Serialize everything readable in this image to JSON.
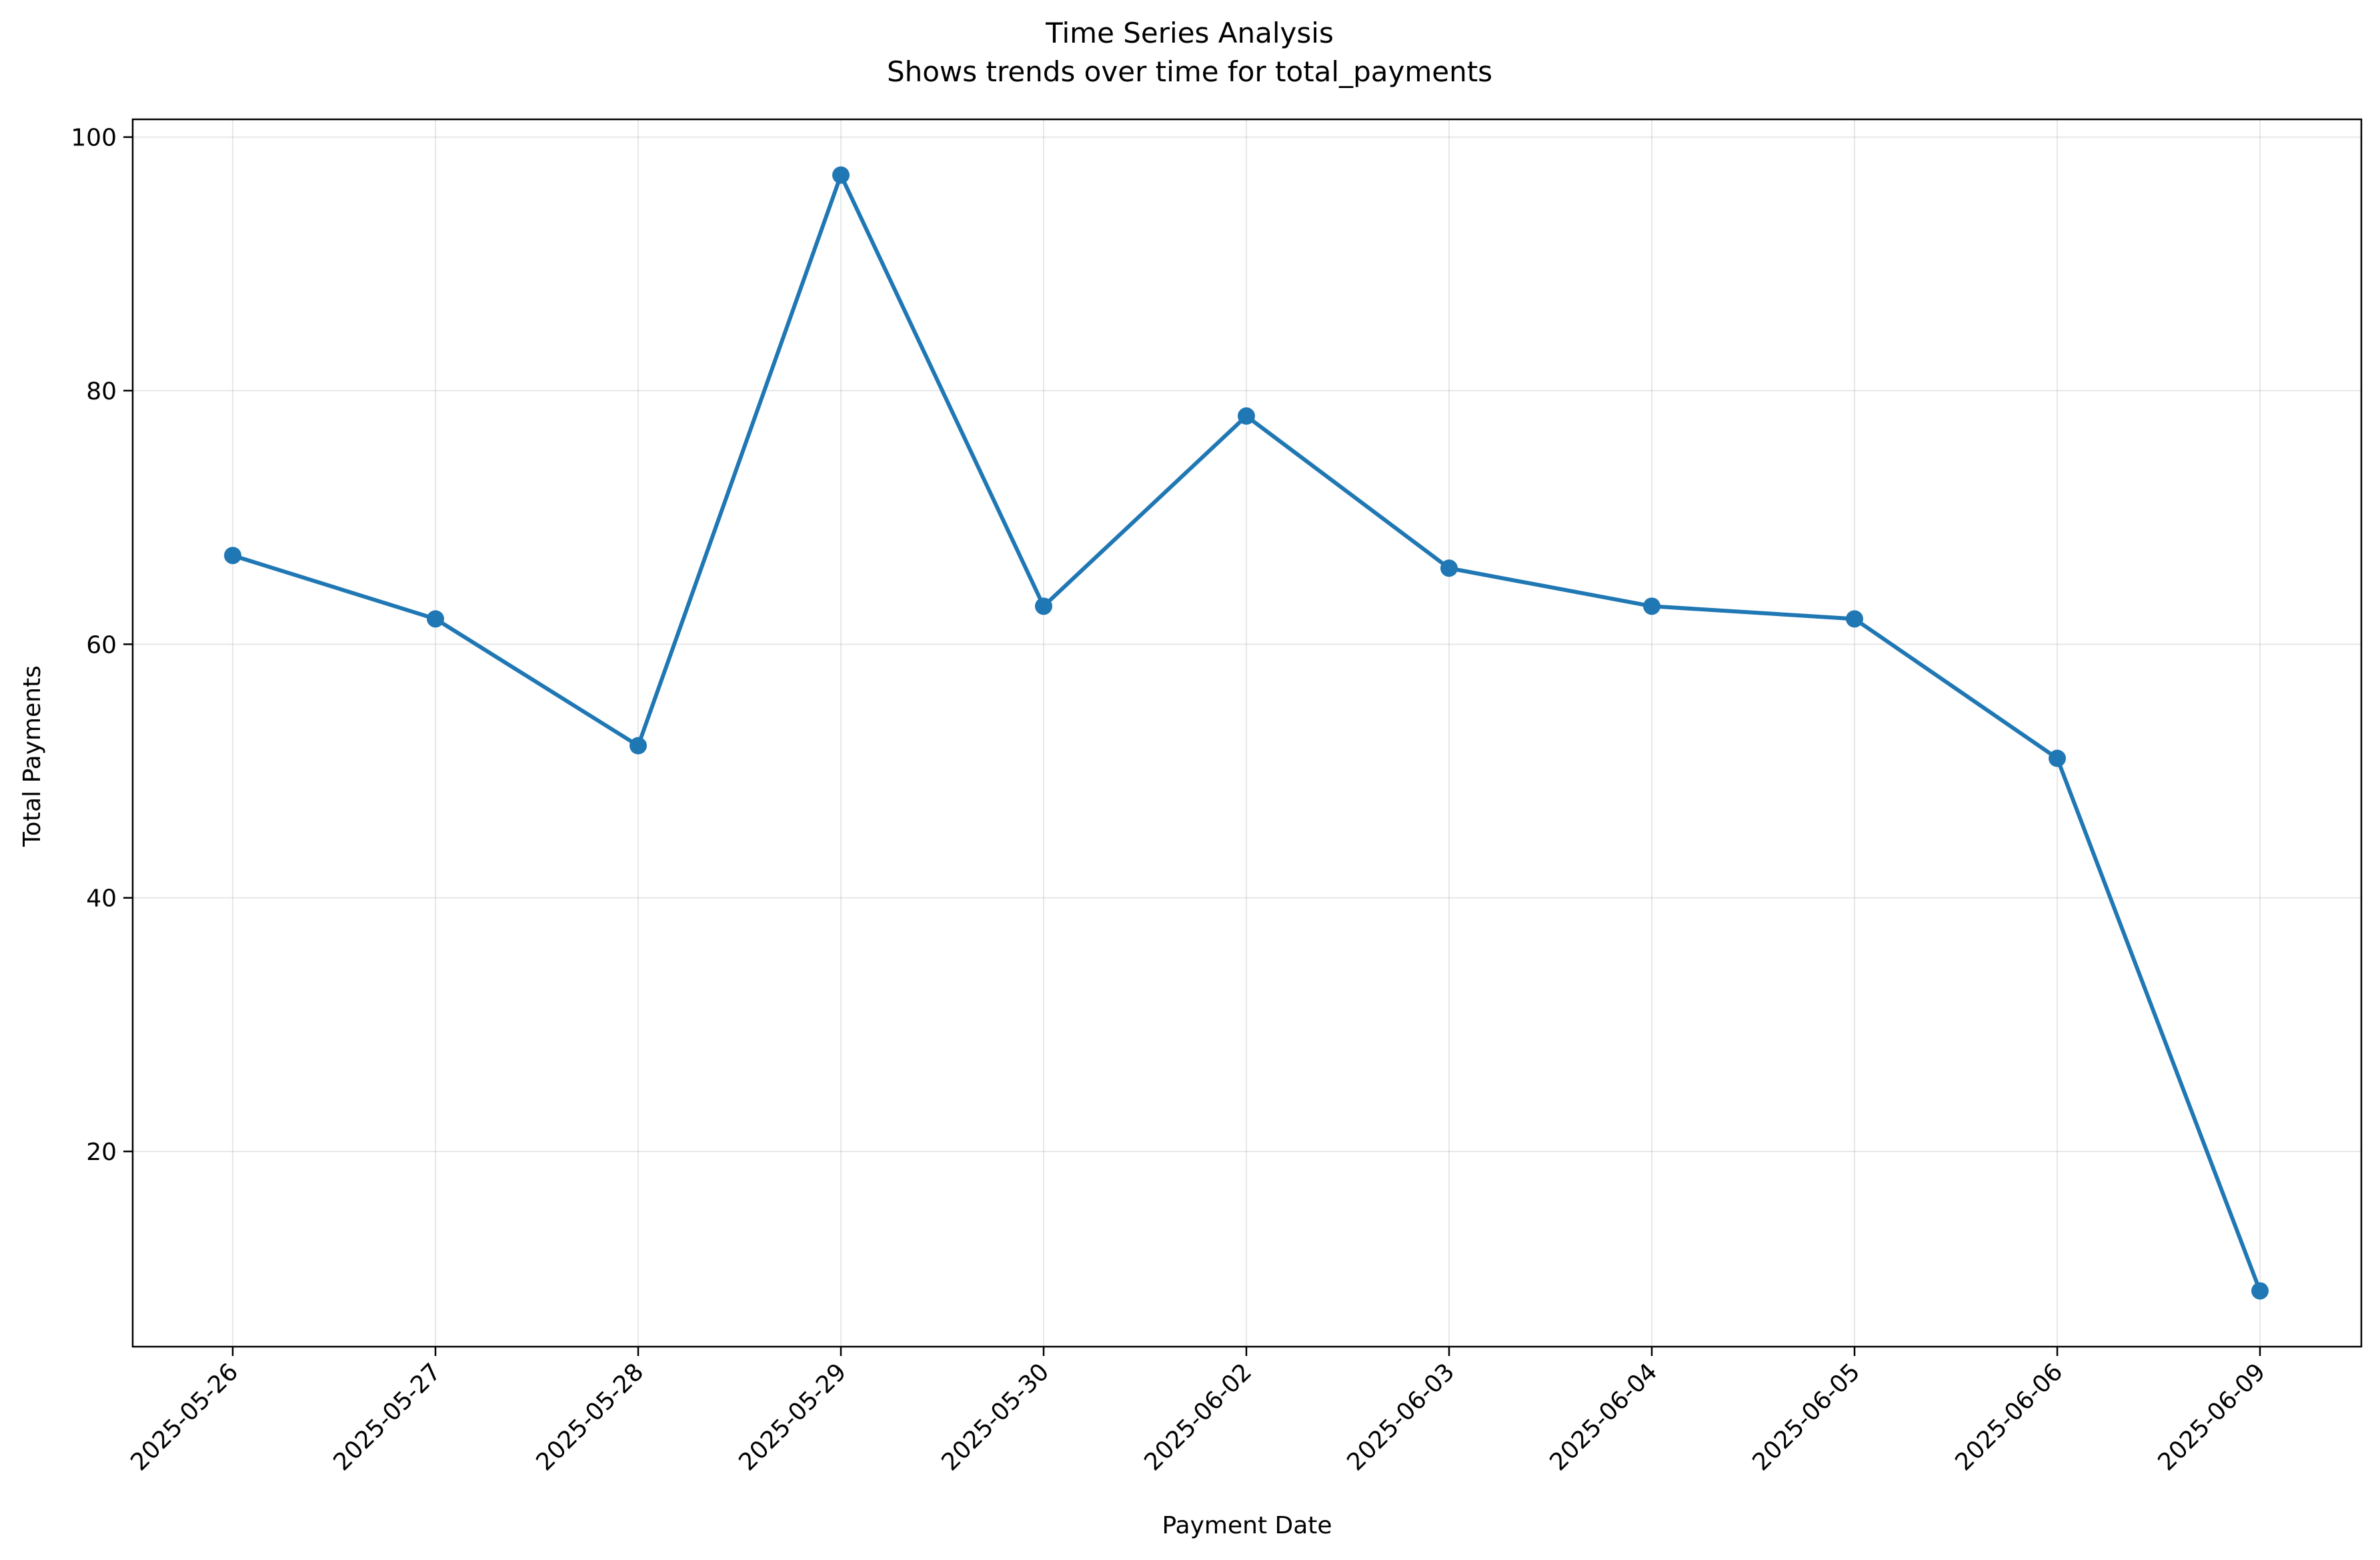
{
  "chart_data": {
    "type": "line",
    "title": "Time Series Analysis",
    "subtitle": "Shows trends over time for total_payments",
    "xlabel": "Payment Date",
    "ylabel": "Total Payments",
    "categories": [
      "2025-05-26",
      "2025-05-27",
      "2025-05-28",
      "2025-05-29",
      "2025-05-30",
      "2025-06-02",
      "2025-06-03",
      "2025-06-04",
      "2025-06-05",
      "2025-06-06",
      "2025-06-09"
    ],
    "series": [
      {
        "values": [
          67,
          62,
          52,
          97,
          63,
          78,
          66,
          63,
          62,
          51,
          9
        ],
        "color": "#1f77b4",
        "marker": "circle"
      }
    ],
    "ylim": [
      4.6,
      101.4
    ],
    "yticks": [
      20,
      40,
      60,
      80,
      100
    ],
    "grid": true,
    "legend": "none"
  }
}
